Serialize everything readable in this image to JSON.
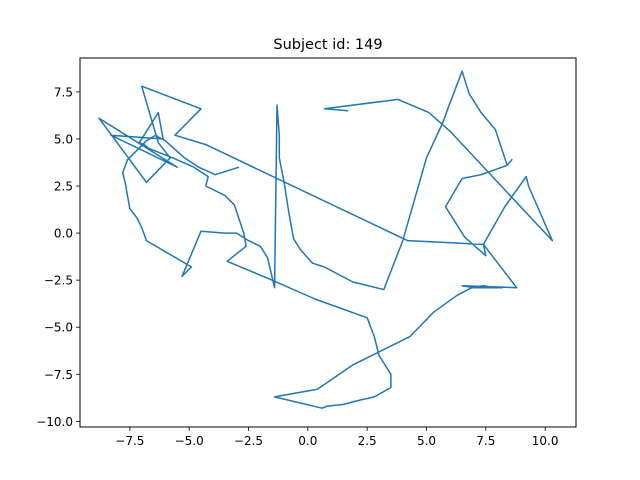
{
  "chart_data": {
    "type": "line",
    "title": "Subject id: 149",
    "xlabel": "",
    "ylabel": "",
    "xlim": [
      -9.6,
      11.3
    ],
    "ylim": [
      -10.3,
      9.3
    ],
    "xticks": [
      -7.5,
      -5.0,
      -2.5,
      0.0,
      2.5,
      5.0,
      7.5,
      10.0
    ],
    "xtick_labels": [
      "−7.5",
      "−5.0",
      "−2.5",
      "0.0",
      "2.5",
      "5.0",
      "7.5",
      "10.0"
    ],
    "yticks": [
      -10.0,
      -7.5,
      -5.0,
      -2.5,
      0.0,
      2.5,
      5.0,
      7.5
    ],
    "ytick_labels": [
      "−10.0",
      "−7.5",
      "−5.0",
      "−2.5",
      "0.0",
      "2.5",
      "5.0",
      "7.5"
    ],
    "grid": false,
    "line_color": "#1f77b4",
    "series": [
      {
        "x": [
          1.7,
          0.7,
          3.8,
          5.1,
          6.0,
          10.3,
          9.3,
          9.2,
          8.3,
          7.4,
          4.2,
          -4.3,
          -5.6,
          -4.5,
          -7.0,
          -6.3,
          -5.8,
          -6.8,
          -8.8,
          -5.5,
          -8.3,
          -6.1,
          -6.3,
          -6.9,
          -7.1,
          -6.9,
          -6.7,
          -5.7,
          -4.8,
          -4.2,
          -4.3,
          -3.5,
          -3.1,
          -2.7,
          -2.6,
          -3.4,
          -1.5,
          0.3,
          2.5,
          2.8,
          3.0,
          3.5,
          3.5,
          2.8,
          2.1,
          1.5,
          0.8,
          0.6,
          -1.4,
          0.4,
          1.9,
          4.3,
          5.3,
          6.3,
          6.9,
          7.4,
          7.9,
          8.2,
          7.9,
          7.4,
          7.0,
          6.5,
          8.8,
          7.4,
          7.5,
          6.6,
          5.8,
          6.5,
          7.3,
          8.4,
          8.6,
          8.4,
          7.9,
          7.3,
          6.8,
          6.5,
          5.9,
          5.7,
          5.0,
          4.0,
          3.2,
          1.9,
          0.7,
          0.2,
          -0.3,
          -0.6,
          -0.8,
          -1.0,
          -1.2,
          -1.2,
          -1.3,
          -1.4,
          -1.7,
          -2.0,
          -2.5,
          -3.0,
          -3.5,
          -4.5,
          -5.3,
          -4.9,
          -6.8,
          -7.0,
          -7.2,
          -7.5,
          -7.7,
          -7.8,
          -7.6,
          -7.2,
          -6.8,
          -6.4,
          -6.3,
          -6.0,
          -5.2,
          -4.6,
          -3.9,
          -2.9
        ],
        "y": [
          6.5,
          6.6,
          7.1,
          6.4,
          5.4,
          -0.4,
          2.5,
          3.0,
          1.4,
          -0.6,
          -0.4,
          4.7,
          5.2,
          6.6,
          7.8,
          4.8,
          4.0,
          2.7,
          6.1,
          3.5,
          5.2,
          5.0,
          6.4,
          5.2,
          4.8,
          4.7,
          4.5,
          4.0,
          3.5,
          3.0,
          2.5,
          2.0,
          1.5,
          0.0,
          -0.7,
          -1.5,
          -2.5,
          -3.5,
          -4.5,
          -5.5,
          -6.5,
          -7.5,
          -8.2,
          -8.7,
          -8.9,
          -9.1,
          -9.2,
          -9.3,
          -8.7,
          -8.3,
          -7.0,
          -5.5,
          -4.2,
          -3.3,
          -2.9,
          -2.8,
          -2.9,
          -2.9,
          -2.9,
          -2.9,
          -2.9,
          -2.8,
          -2.9,
          -0.6,
          -1.2,
          -0.2,
          1.4,
          2.9,
          3.1,
          3.6,
          3.9,
          3.6,
          5.5,
          6.4,
          7.4,
          8.6,
          6.6,
          5.9,
          4.0,
          -0.4,
          -3.0,
          -2.6,
          -1.8,
          -1.6,
          -0.9,
          -0.3,
          1.1,
          2.7,
          4.0,
          5.2,
          6.8,
          -2.9,
          -1.3,
          -0.7,
          -0.4,
          0.0,
          0.0,
          0.1,
          -2.3,
          -1.8,
          -0.4,
          0.3,
          0.8,
          1.3,
          2.7,
          3.2,
          3.9,
          4.4,
          4.9,
          5.2,
          5.1,
          4.9,
          4.0,
          3.5,
          3.1,
          3.5
        ]
      }
    ]
  }
}
